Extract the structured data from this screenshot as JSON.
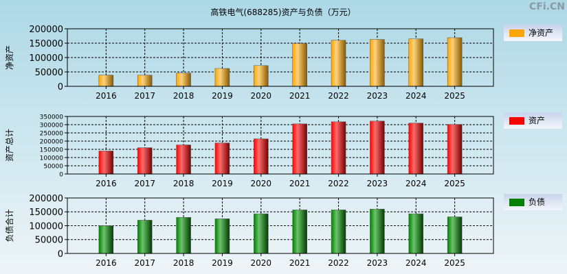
{
  "title": "高铁电气(688285)资产与负债（万元）",
  "watermark": "CFi.CN",
  "chart_data": [
    {
      "type": "bar",
      "ylabel": "净资产",
      "legend": "净资产",
      "color": "#ffa500",
      "ylim": [
        0,
        200000
      ],
      "yticks": [
        0,
        50000,
        100000,
        150000,
        200000
      ],
      "categories": [
        "2016",
        "2017",
        "2018",
        "2019",
        "2020",
        "2021",
        "2022",
        "2023",
        "2024",
        "2025"
      ],
      "values": [
        39000,
        39000,
        46000,
        62000,
        72000,
        149000,
        160000,
        163000,
        165000,
        169000
      ],
      "grid": true,
      "legend_position": "right"
    },
    {
      "type": "bar",
      "ylabel": "资产总计",
      "legend": "资产",
      "color": "#ff0000",
      "ylim": [
        0,
        350000
      ],
      "yticks": [
        0,
        50000,
        100000,
        150000,
        200000,
        250000,
        300000,
        350000
      ],
      "categories": [
        "2016",
        "2017",
        "2018",
        "2019",
        "2020",
        "2021",
        "2022",
        "2023",
        "2024",
        "2025"
      ],
      "values": [
        140000,
        160000,
        177000,
        189000,
        214000,
        305000,
        318000,
        322000,
        310000,
        302000
      ],
      "grid": true,
      "legend_position": "right"
    },
    {
      "type": "bar",
      "ylabel": "负债合计",
      "legend": "负债",
      "color": "#008000",
      "ylim": [
        0,
        200000
      ],
      "yticks": [
        0,
        50000,
        100000,
        150000,
        200000
      ],
      "categories": [
        "2016",
        "2017",
        "2018",
        "2019",
        "2020",
        "2021",
        "2022",
        "2023",
        "2024",
        "2025"
      ],
      "values": [
        100000,
        120000,
        130000,
        125000,
        143000,
        157000,
        157000,
        160000,
        143000,
        132000
      ],
      "grid": true,
      "legend_position": "right"
    }
  ]
}
